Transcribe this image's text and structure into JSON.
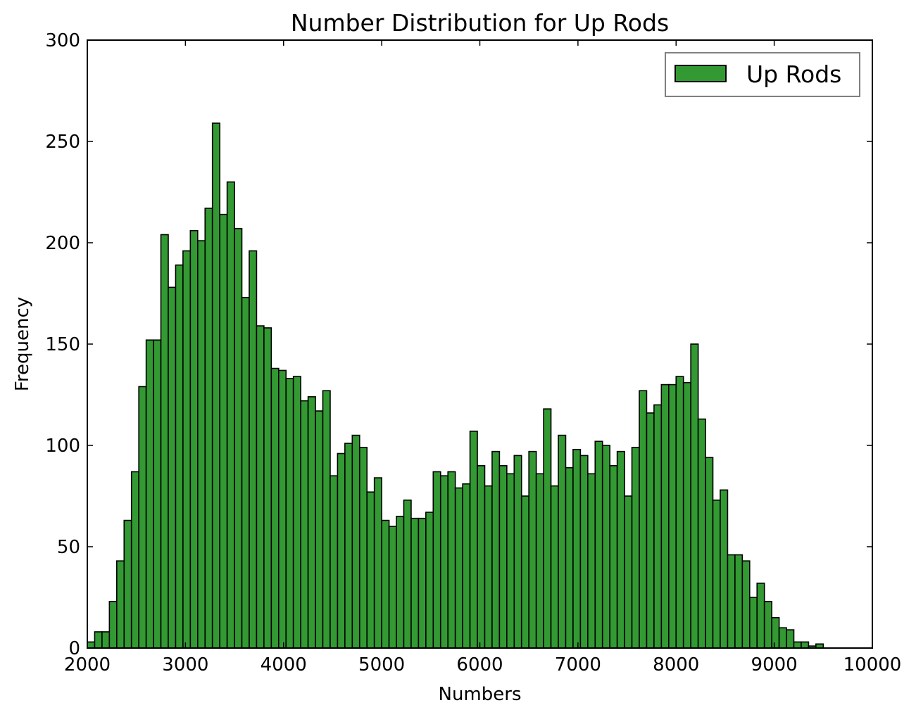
{
  "chart_data": {
    "type": "bar",
    "title": "Number Distribution for Up Rods",
    "xlabel": "Numbers",
    "ylabel": "Frequency",
    "xlim": [
      2000,
      10000
    ],
    "ylim": [
      0,
      300
    ],
    "xticks": [
      "2000",
      "3000",
      "4000",
      "5000",
      "6000",
      "7000",
      "8000",
      "9000",
      "10000"
    ],
    "yticks": [
      "0",
      "50",
      "100",
      "150",
      "200",
      "250",
      "300"
    ],
    "grid": false,
    "legend_position": "top-right",
    "bin_start": 2000,
    "bin_width": 75,
    "series": [
      {
        "name": "Up Rods",
        "color": "#339933",
        "values": [
          3,
          8,
          8,
          23,
          43,
          63,
          87,
          129,
          152,
          152,
          204,
          178,
          189,
          196,
          206,
          201,
          217,
          259,
          214,
          230,
          207,
          173,
          196,
          159,
          158,
          138,
          137,
          133,
          134,
          122,
          124,
          117,
          127,
          85,
          96,
          101,
          105,
          99,
          77,
          84,
          63,
          60,
          65,
          73,
          64,
          64,
          67,
          87,
          85,
          87,
          79,
          81,
          107,
          90,
          80,
          97,
          90,
          86,
          95,
          75,
          97,
          86,
          118,
          80,
          105,
          89,
          98,
          95,
          86,
          102,
          100,
          90,
          97,
          75,
          99,
          127,
          116,
          120,
          130,
          130,
          134,
          131,
          150,
          113,
          94,
          73,
          78,
          46,
          46,
          43,
          25,
          32,
          23,
          15,
          10,
          9,
          3,
          3,
          1,
          2
        ]
      }
    ]
  }
}
